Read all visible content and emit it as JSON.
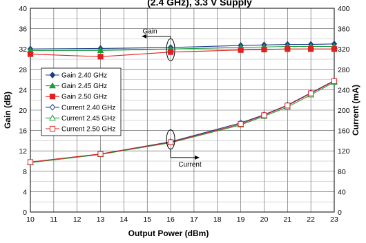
{
  "chart_data": {
    "type": "line",
    "title": "(2.4 GHz), 3.3 V Supply",
    "xlabel": "Output Power (dBm)",
    "ylabel": "Gain (dB)",
    "y2label": "Current (mA)",
    "xlim": [
      10,
      23
    ],
    "ylim": [
      0,
      40
    ],
    "y2lim": [
      0,
      400
    ],
    "xticks": [
      "10",
      "11",
      "12",
      "13",
      "14",
      "15",
      "16",
      "17",
      "18",
      "19",
      "20",
      "21",
      "22",
      "23"
    ],
    "yticks": [
      "0",
      "4",
      "8",
      "12",
      "16",
      "20",
      "24",
      "28",
      "32",
      "36",
      "40"
    ],
    "y2ticks": [
      "0",
      "40",
      "80",
      "120",
      "160",
      "200",
      "240",
      "280",
      "320",
      "360",
      "400"
    ],
    "grid": true,
    "legend_position": "left",
    "annotations": {
      "gain": "Gain",
      "current": "Current"
    },
    "series": [
      {
        "name": "Gain 2.40 GHz",
        "axis": "left",
        "color": "#1f3c88",
        "marker": "diamond",
        "filled": true,
        "x": [
          10,
          13,
          16,
          19,
          20,
          21,
          22,
          23
        ],
        "y": [
          32.0,
          32.1,
          32.3,
          32.7,
          32.8,
          32.9,
          32.9,
          33.0
        ]
      },
      {
        "name": "Gain 2.45 GHz",
        "axis": "left",
        "color": "#1a9e3a",
        "marker": "triangle",
        "filled": true,
        "x": [
          10,
          13,
          16,
          19,
          20,
          21,
          22,
          23
        ],
        "y": [
          31.7,
          31.7,
          32.0,
          32.3,
          32.4,
          32.5,
          32.5,
          32.5
        ]
      },
      {
        "name": "Gain 2.50 GHz",
        "axis": "left",
        "color": "#e02020",
        "marker": "square",
        "filled": true,
        "x": [
          10,
          13,
          16,
          19,
          20,
          21,
          22,
          23
        ],
        "y": [
          31.0,
          30.5,
          31.4,
          31.8,
          31.9,
          32.0,
          32.0,
          32.0
        ]
      },
      {
        "name": "Current 2.40 GHz",
        "axis": "right",
        "color": "#1f3c88",
        "marker": "diamond",
        "filled": false,
        "x": [
          10,
          13,
          16,
          19,
          20,
          21,
          22,
          23
        ],
        "y": [
          98,
          114,
          138,
          175,
          191,
          210,
          234,
          258
        ]
      },
      {
        "name": "Current 2.45 GHz",
        "axis": "right",
        "color": "#1a9e3a",
        "marker": "triangle",
        "filled": false,
        "x": [
          10,
          13,
          16,
          19,
          20,
          21,
          22,
          23
        ],
        "y": [
          97,
          113,
          136,
          171,
          188,
          206,
          230,
          255
        ]
      },
      {
        "name": "Current 2.50 GHz",
        "axis": "right",
        "color": "#e02020",
        "marker": "square",
        "filled": false,
        "x": [
          10,
          13,
          16,
          19,
          20,
          21,
          22,
          23
        ],
        "y": [
          98,
          114,
          137,
          173,
          190,
          209,
          233,
          257
        ]
      }
    ]
  }
}
